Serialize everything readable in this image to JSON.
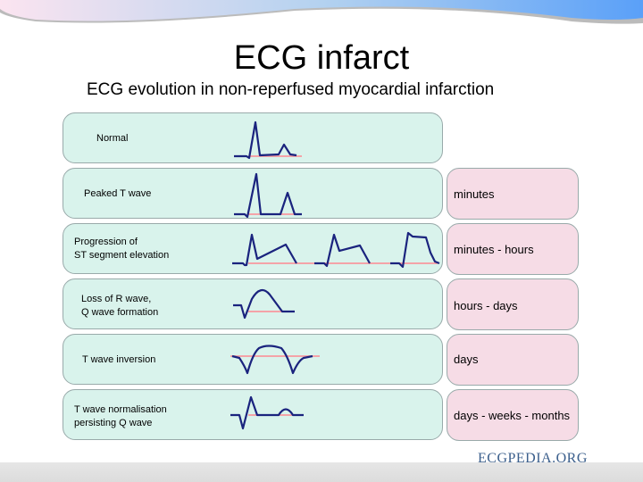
{
  "slide": {
    "title": "ECG infarct",
    "subtitle": "ECG evolution in non-reperfused myocardial infarction"
  },
  "rows": [
    {
      "label": "Normal",
      "time": ""
    },
    {
      "label": "Peaked T wave",
      "time": "minutes"
    },
    {
      "label_line1": "Progression of",
      "label_line2": "ST segment elevation",
      "time": "minutes - hours"
    },
    {
      "label_line1": "Loss of R wave,",
      "label_line2": "Q wave formation",
      "time": "hours - days"
    },
    {
      "label": "T wave inversion",
      "time": "days"
    },
    {
      "label_line1": "T wave normalisation",
      "label_line2": "persisting Q wave",
      "time": "days - weeks - months"
    }
  ],
  "logo": {
    "text": "ECGPEDIA.ORG"
  },
  "colors": {
    "trace": "#1a237e",
    "baseline": "#f4a3a8",
    "row_bg": "#d9f3ec",
    "time_bg": "#f6dce6"
  }
}
